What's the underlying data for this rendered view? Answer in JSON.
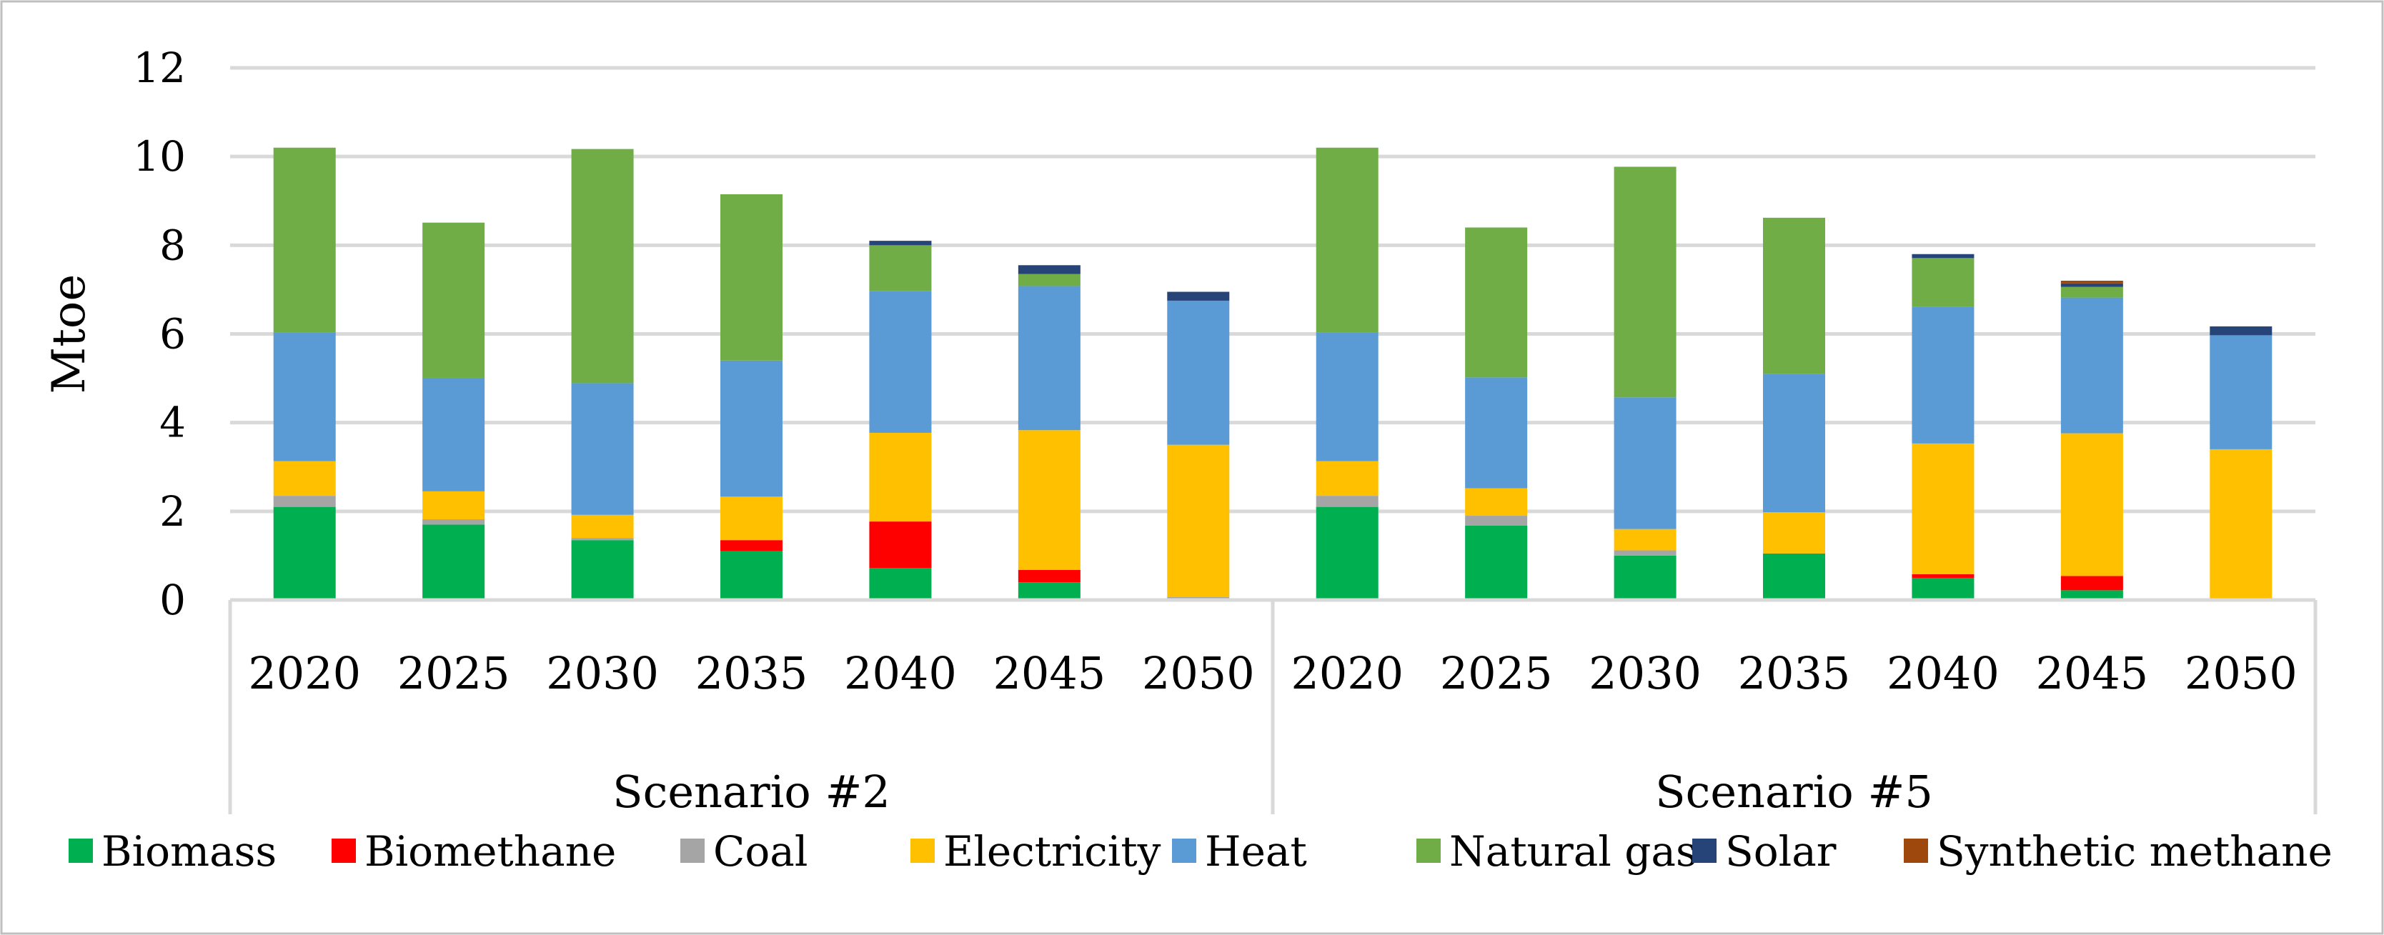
{
  "chart_data": {
    "type": "bar",
    "stacked": true,
    "ylabel": "Mtoe",
    "xlabel": "",
    "ylim": [
      0,
      12
    ],
    "yticks": [
      0,
      2,
      4,
      6,
      8,
      10,
      12
    ],
    "grid": true,
    "legend_position": "bottom",
    "groups": [
      {
        "label": "Scenario #2",
        "categories": [
          "2020",
          "2025",
          "2030",
          "2035",
          "2040",
          "2045",
          "2050"
        ]
      },
      {
        "label": "Scenario #5",
        "categories": [
          "2020",
          "2025",
          "2030",
          "2035",
          "2040",
          "2045",
          "2050"
        ]
      }
    ],
    "series": [
      {
        "name": "Biomass",
        "color": "#00b050",
        "values": [
          2.1,
          1.7,
          1.35,
          1.1,
          0.72,
          0.4,
          0.02,
          2.1,
          1.68,
          1.0,
          1.05,
          0.5,
          0.22,
          0.02
        ]
      },
      {
        "name": "Biomethane",
        "color": "#ff0000",
        "values": [
          0.0,
          0.0,
          0.0,
          0.25,
          1.05,
          0.28,
          0.0,
          0.0,
          0.0,
          0.0,
          0.0,
          0.08,
          0.32,
          0.0
        ]
      },
      {
        "name": "Coal",
        "color": "#a5a5a5",
        "values": [
          0.25,
          0.12,
          0.05,
          0.0,
          0.0,
          0.0,
          0.05,
          0.25,
          0.22,
          0.12,
          0.0,
          0.0,
          0.0,
          0.0
        ]
      },
      {
        "name": "Electricity",
        "color": "#ffc000",
        "values": [
          0.78,
          0.63,
          0.52,
          0.98,
          2.0,
          3.15,
          3.43,
          0.78,
          0.62,
          0.48,
          0.93,
          2.95,
          3.22,
          3.38
        ]
      },
      {
        "name": "Heat",
        "color": "#5b9bd5",
        "values": [
          2.9,
          2.56,
          2.97,
          3.07,
          3.2,
          3.25,
          3.25,
          2.9,
          2.5,
          2.97,
          3.12,
          3.08,
          3.06,
          2.57
        ]
      },
      {
        "name": "Natural gas",
        "color": "#70ad47",
        "values": [
          4.17,
          3.5,
          5.28,
          3.75,
          1.03,
          0.27,
          0.0,
          4.17,
          3.38,
          5.2,
          3.52,
          1.1,
          0.24,
          0.0
        ]
      },
      {
        "name": "Solar",
        "color": "#264478",
        "values": [
          0.0,
          0.0,
          0.0,
          0.0,
          0.1,
          0.2,
          0.2,
          0.0,
          0.0,
          0.0,
          0.0,
          0.09,
          0.08,
          0.2
        ]
      },
      {
        "name": "Synthetic methane",
        "color": "#9e480e",
        "values": [
          0.0,
          0.0,
          0.0,
          0.0,
          0.0,
          0.0,
          0.0,
          0.0,
          0.0,
          0.0,
          0.0,
          0.0,
          0.06,
          0.0
        ]
      }
    ]
  }
}
